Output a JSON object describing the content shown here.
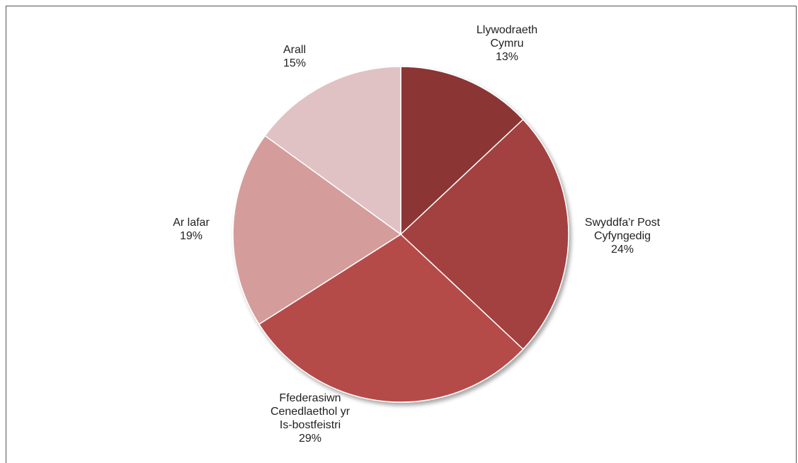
{
  "chart_data": {
    "type": "pie",
    "title": "",
    "slices": [
      {
        "label": [
          "Llywodraeth",
          "Cymru"
        ],
        "value": 13,
        "value_label": "13%",
        "color": "#8b3535"
      },
      {
        "label": [
          "Swyddfa'r  Post",
          "Cyfyngedig"
        ],
        "value": 24,
        "value_label": "24%",
        "color": "#a34141"
      },
      {
        "label": [
          "Ffederasiwn",
          "Cenedlaethol  yr",
          "Is-bostfeistri"
        ],
        "value": 29,
        "value_label": "29%",
        "color": "#b54c4a"
      },
      {
        "label": [
          "Ar lafar"
        ],
        "value": 19,
        "value_label": "19%",
        "color": "#d59c9c"
      },
      {
        "label": [
          "Arall"
        ],
        "value": 15,
        "value_label": "15%",
        "color": "#e1c2c4"
      }
    ],
    "start_angle_deg": 0,
    "direction": "clockwise",
    "legend": "none"
  }
}
